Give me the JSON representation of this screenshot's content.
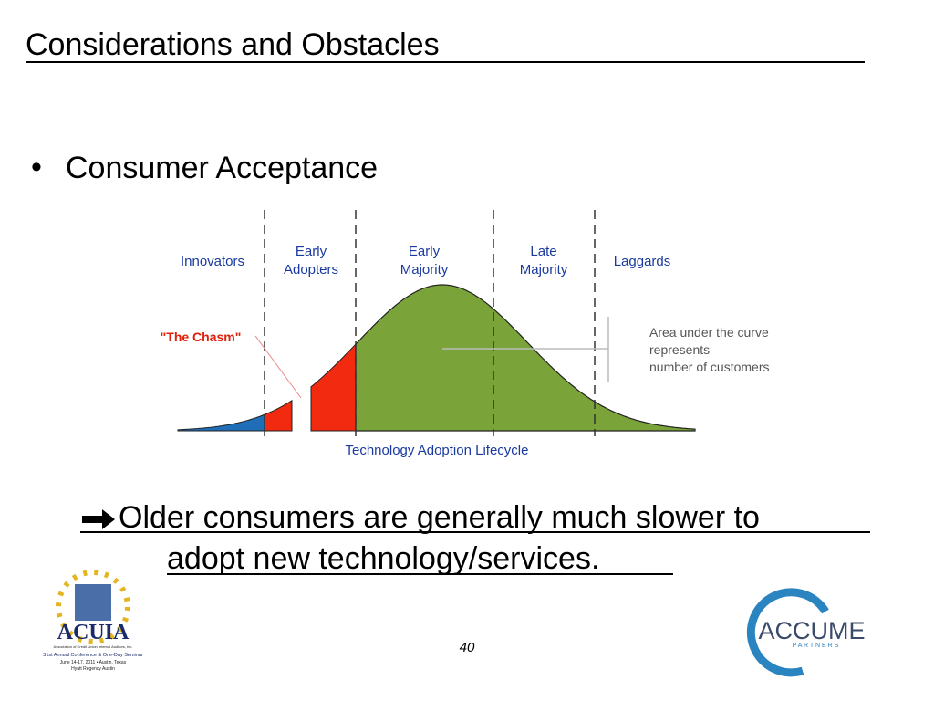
{
  "title": "Considerations and Obstacles",
  "bullet": "Consumer Acceptance",
  "diagram": {
    "segments": [
      [
        "Innovators"
      ],
      [
        "Early",
        "Adopters"
      ],
      [
        "Early",
        "Majority"
      ],
      [
        "Late",
        "Majority"
      ],
      [
        "Laggards"
      ]
    ],
    "chasm_label": "\"The Chasm\"",
    "note": [
      "Area under the curve",
      "represents",
      "number of customers"
    ],
    "caption": "Technology Adoption Lifecycle"
  },
  "conclusion": [
    "Older consumers are generally much slower to",
    "adopt new technology/services."
  ],
  "page_number": "40",
  "logos": {
    "left": {
      "name": "ACUIA",
      "lines": [
        "Association of Credit Union Internal Auditors, Inc.",
        "31st Annual Conference & One-Day Seminar",
        "June 14-17, 2011 • Austin, Texas",
        "Hyatt Regency Austin"
      ]
    },
    "right": {
      "name": "ACCUME",
      "sub": "P A R T N E R S"
    }
  }
}
